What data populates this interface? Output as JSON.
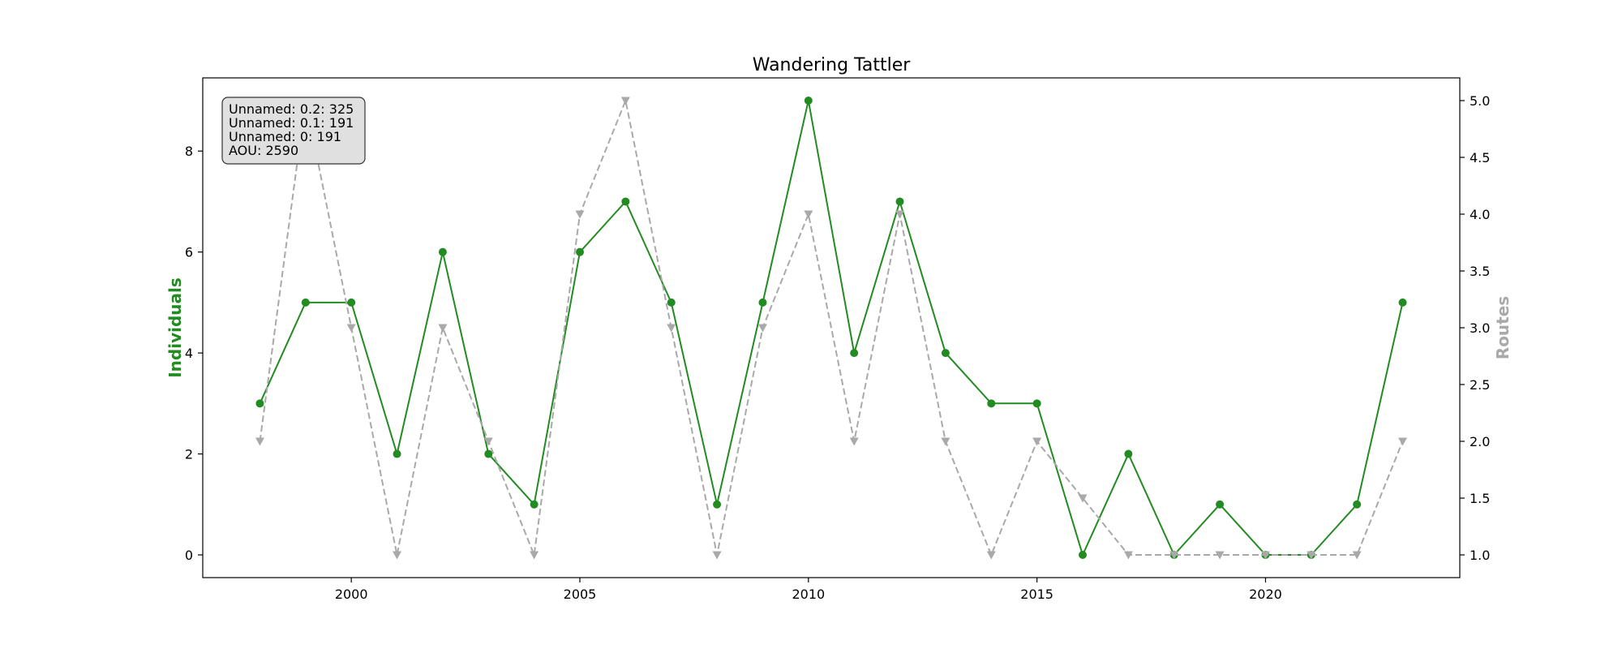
{
  "chart_data": {
    "type": "line",
    "title": "Wandering Tattler",
    "xlabel": "",
    "ylabel": "Individuals",
    "y2label": "Routes",
    "x": [
      1998,
      1999,
      2000,
      2001,
      2002,
      2003,
      2004,
      2005,
      2006,
      2007,
      2008,
      2009,
      2010,
      2011,
      2012,
      2013,
      2014,
      2015,
      2016,
      2017,
      2018,
      2019,
      2020,
      2021,
      2022,
      2023
    ],
    "xlim": [
      1996.75,
      2024.25
    ],
    "xticks": [
      2000,
      2005,
      2010,
      2015,
      2020
    ],
    "ylim": [
      -0.45,
      9.45
    ],
    "yticks": [
      0,
      2,
      4,
      6,
      8
    ],
    "y2lim": [
      0.8,
      5.2
    ],
    "y2ticks": [
      "1.0",
      "1.5",
      "2.0",
      "2.5",
      "3.0",
      "3.5",
      "4.0",
      "4.5",
      "5.0"
    ],
    "grid": false,
    "series": [
      {
        "name": "Individuals",
        "axis": "left",
        "color": "#228b22",
        "values": [
          3,
          5,
          5,
          2,
          6,
          2,
          1,
          6,
          7,
          5,
          1,
          5,
          9,
          4,
          7,
          4,
          3,
          3,
          0,
          2,
          0,
          1,
          0,
          0,
          1,
          5
        ]
      },
      {
        "name": "Routes",
        "axis": "right",
        "color": "#a9a9a9",
        "values": [
          2,
          5,
          3,
          1,
          3,
          2,
          1,
          4,
          5,
          3,
          1,
          3,
          4,
          2,
          4,
          2,
          1,
          2,
          1.5,
          1,
          1,
          1,
          1,
          1,
          1,
          2
        ]
      }
    ],
    "annotation": {
      "lines": [
        "Unnamed: 0.2: 325",
        "Unnamed: 0.1: 191",
        "Unnamed: 0: 191",
        "AOU: 2590"
      ],
      "placement": "top-left"
    }
  }
}
